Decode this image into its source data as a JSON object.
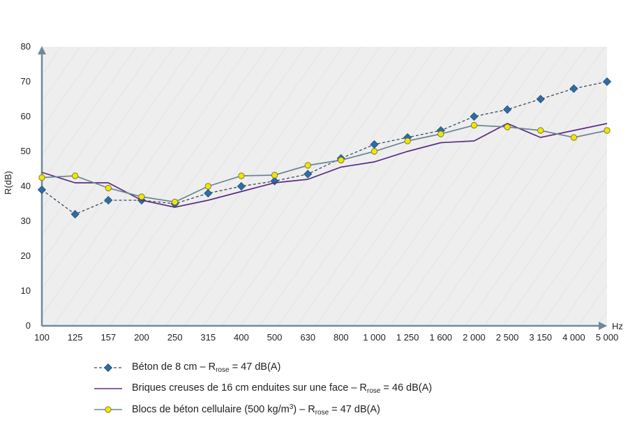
{
  "chart_data": {
    "type": "line",
    "ylabel": "R(dB)",
    "xunit": "Hz",
    "categories": [
      "100",
      "125",
      "157",
      "200",
      "250",
      "315",
      "400",
      "500",
      "630",
      "800",
      "1 000",
      "1 250",
      "1 600",
      "2 000",
      "2 500",
      "3 150",
      "4 000",
      "5 000"
    ],
    "yticks": [
      "0",
      "10",
      "20",
      "30",
      "40",
      "50",
      "60",
      "70",
      "80"
    ],
    "ylim": [
      0,
      80
    ],
    "grid": false,
    "series": [
      {
        "values": [
          39,
          32,
          36,
          36,
          35,
          38,
          40,
          41.5,
          43.5,
          48,
          52,
          54,
          56,
          60,
          62,
          65,
          68,
          70
        ],
        "color": "#34495e",
        "marker": "diamond",
        "marker_color": "#2e6da4",
        "dash": true
      },
      {
        "values": [
          44,
          41,
          41,
          36,
          34,
          36,
          38.5,
          41,
          42,
          45.5,
          47,
          50,
          52.5,
          53,
          58,
          54,
          56,
          58
        ],
        "color": "#5b2d82",
        "marker": "none",
        "dash": false
      },
      {
        "values": [
          42.5,
          43,
          39.5,
          37,
          35.5,
          40,
          43,
          43.2,
          46,
          47.5,
          50,
          53,
          55,
          57.5,
          57,
          56,
          54,
          56
        ],
        "color": "#6d8592",
        "marker": "circle",
        "marker_color": "#f2e600",
        "dash": false
      }
    ]
  },
  "legend": {
    "item1_text": "Béton de 8 cm – R",
    "item1_sub": "rose",
    "item1_tail": " = 47 dB(A)",
    "item2_text": "Briques creuses de 16 cm enduites sur une face – R",
    "item2_sub": "rose",
    "item2_tail": " = 46 dB(A)",
    "item3_text": "Blocs de béton cellulaire (500 kg/m",
    "item3_sup": "3",
    "item3_mid": ") – R",
    "item3_sub": "rose",
    "item3_tail": " = 47 dB(A)"
  }
}
